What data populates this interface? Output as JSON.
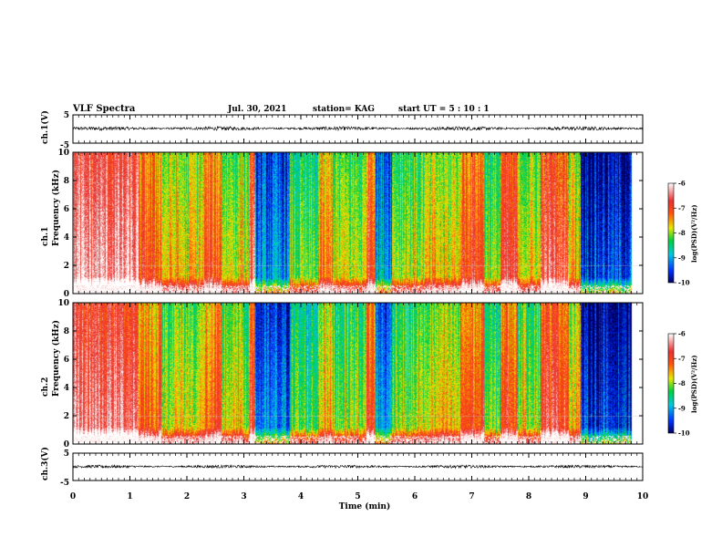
{
  "header": {
    "title": "VLF Spectra",
    "date": "Jul. 30, 2021",
    "station": "station= KAG",
    "start": "start  UT =   5 : 10 : 1"
  },
  "chart_data": [
    {
      "type": "line",
      "panel": "ch1-waveform",
      "ylabel": "ch.1(V)",
      "yticks": [
        "5",
        "-5"
      ],
      "ylim": [
        -5,
        5
      ],
      "xlim": [
        0,
        10
      ],
      "series_level": 0.2,
      "noise_amplitude": 0.5
    },
    {
      "type": "heatmap",
      "panel": "ch1-spectrogram",
      "ylabel": "ch.1\nFrequency (kHz)",
      "yticks": [
        "0",
        "2",
        "4",
        "6",
        "8",
        "10"
      ],
      "ylim": [
        0,
        10
      ],
      "xlim": [
        0,
        10
      ],
      "colorbar": {
        "label": "log(PSD)(V²/Hz)",
        "ticks": [
          "-6",
          "-7",
          "-8",
          "-9",
          "-10"
        ],
        "range": [
          -10,
          -6
        ]
      }
    },
    {
      "type": "heatmap",
      "panel": "ch2-spectrogram",
      "ylabel": "ch.2\nFrequency (kHz)",
      "yticks": [
        "0",
        "2",
        "4",
        "6",
        "8",
        "10"
      ],
      "ylim": [
        0,
        10
      ],
      "xlim": [
        0,
        10
      ],
      "colorbar": {
        "label": "log(PSD)(V²/Hz)",
        "ticks": [
          "-6",
          "-7",
          "-8",
          "-9",
          "-10"
        ],
        "range": [
          -10,
          -6
        ]
      }
    },
    {
      "type": "line",
      "panel": "ch3-waveform",
      "ylabel": "ch.3(V)",
      "yticks": [
        "5",
        "-5"
      ],
      "ylim": [
        -5,
        5
      ],
      "xlim": [
        0,
        10
      ],
      "series_level": 0.1,
      "noise_amplitude": 0.4
    }
  ],
  "xaxis": {
    "label": "Time (min)",
    "ticks": [
      "0",
      "1",
      "2",
      "3",
      "4",
      "5",
      "6",
      "7",
      "8",
      "9",
      "10"
    ]
  },
  "spectral_regions": [
    {
      "t0": 0.0,
      "t1": 1.15,
      "level": -6.5
    },
    {
      "t0": 1.15,
      "t1": 1.55,
      "level": -7.2
    },
    {
      "t0": 1.55,
      "t1": 2.3,
      "level": -7.8
    },
    {
      "t0": 2.3,
      "t1": 2.6,
      "level": -7.3
    },
    {
      "t0": 2.6,
      "t1": 3.1,
      "level": -7.9
    },
    {
      "t0": 3.1,
      "t1": 3.2,
      "level": -6.8
    },
    {
      "t0": 3.2,
      "t1": 3.8,
      "level": -9.3
    },
    {
      "t0": 3.8,
      "t1": 4.3,
      "level": -8.3
    },
    {
      "t0": 4.3,
      "t1": 4.55,
      "level": -7.6
    },
    {
      "t0": 4.55,
      "t1": 5.15,
      "level": -8.0
    },
    {
      "t0": 5.15,
      "t1": 5.3,
      "level": -7.0
    },
    {
      "t0": 5.3,
      "t1": 5.6,
      "level": -9.1
    },
    {
      "t0": 5.6,
      "t1": 6.2,
      "level": -8.0
    },
    {
      "t0": 6.2,
      "t1": 6.8,
      "level": -7.8
    },
    {
      "t0": 6.8,
      "t1": 7.2,
      "level": -7.1
    },
    {
      "t0": 7.2,
      "t1": 7.5,
      "level": -8.2
    },
    {
      "t0": 7.5,
      "t1": 7.8,
      "level": -7.0
    },
    {
      "t0": 7.8,
      "t1": 8.2,
      "level": -7.9
    },
    {
      "t0": 8.2,
      "t1": 8.7,
      "level": -6.8
    },
    {
      "t0": 8.7,
      "t1": 8.9,
      "level": -7.6
    },
    {
      "t0": 8.9,
      "t1": 9.8,
      "level": -9.6
    }
  ],
  "colors": {
    "low": "#000080",
    "high": "#ffffff",
    "line": "#000000"
  }
}
